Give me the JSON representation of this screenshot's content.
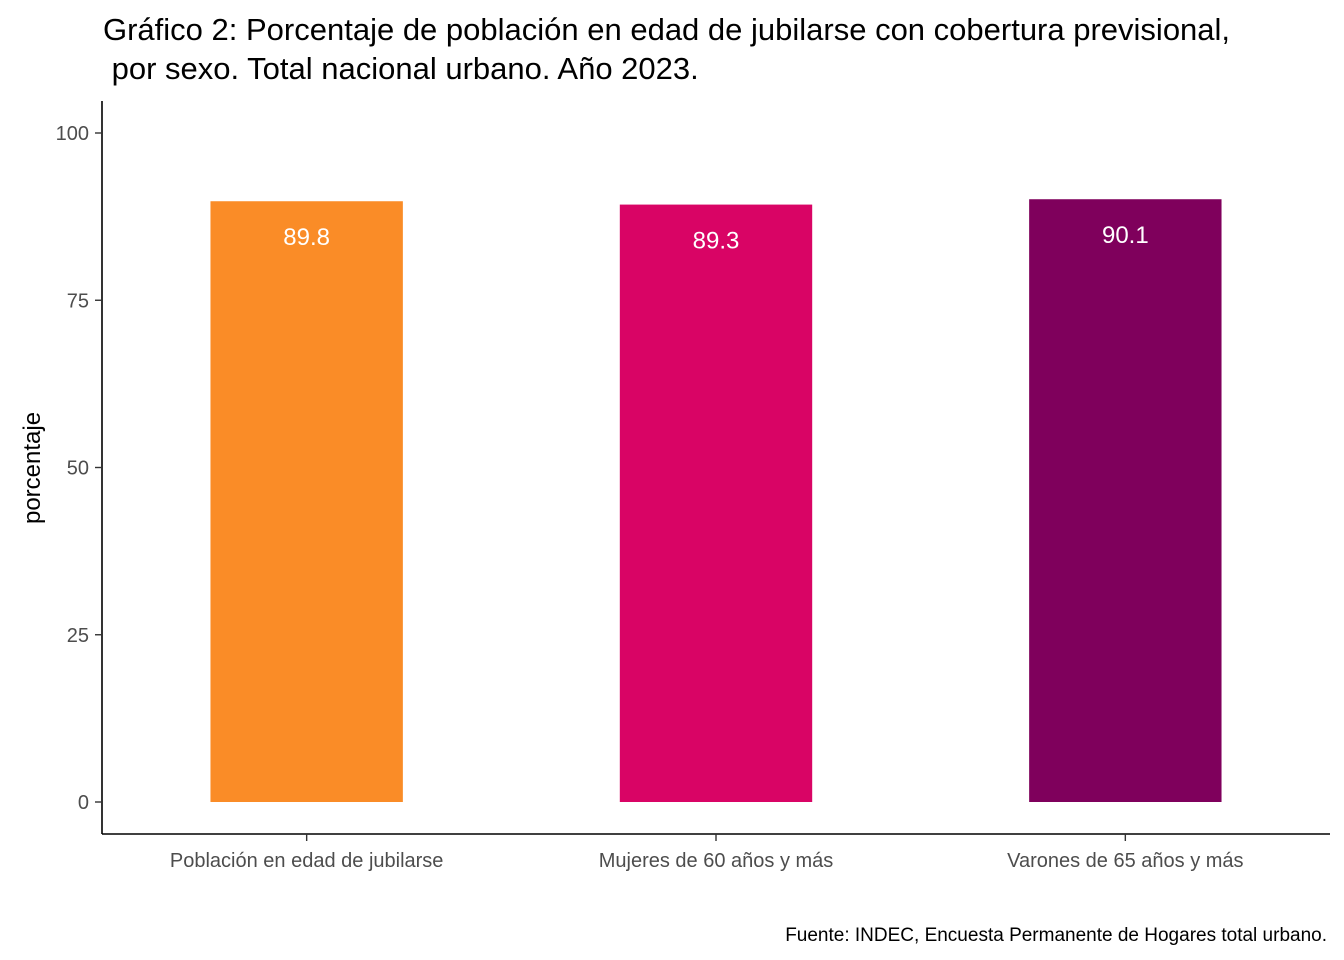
{
  "chart_data": {
    "type": "bar",
    "title_lines": [
      "Gráfico 2: Porcentaje de población en edad de jubilarse con cobertura previsional,",
      " por sexo. Total nacional urbano. Año 2023."
    ],
    "categories": [
      "Población en edad de jubilarse",
      "Mujeres de 60 años y más",
      "Varones de 65 años y más"
    ],
    "values": [
      89.8,
      89.3,
      90.1
    ],
    "value_labels": [
      "89.8",
      "89.3",
      "90.1"
    ],
    "bar_colors": [
      "#fa8c27",
      "#d90465",
      "#7f005c"
    ],
    "ylabel": "porcentaje",
    "xlabel": "",
    "ylim": [
      0,
      100
    ],
    "yticks": [
      0,
      25,
      50,
      75,
      100
    ],
    "grid": false,
    "legend": "none",
    "caption": "Fuente: INDEC, Encuesta Permanente de Hogares total urbano."
  }
}
